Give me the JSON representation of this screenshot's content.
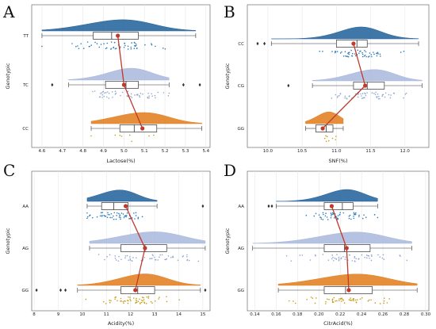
{
  "colors": {
    "series": [
      "#1f5f9a",
      "#a8b7dc",
      "#e07b1a"
    ],
    "points": [
      "#2b7bba",
      "#8fa7cf",
      "#c99a12"
    ],
    "median_line": "#c0392b",
    "grid": "#e6e6e6",
    "frame": "#555555"
  },
  "chart_data": [
    {
      "panel_label": "A",
      "type": "raincloud",
      "xlabel": "Lactose(%)",
      "ylabel": "Genotypic",
      "xlim": [
        4.55,
        5.42
      ],
      "xticks": [
        "4.6",
        "4.7",
        "4.8",
        "4.9",
        "5.0",
        "5.1",
        "5.2",
        "5.3",
        "5.4"
      ],
      "grid": true,
      "categories": [
        {
          "name": "TT",
          "q1": 4.85,
          "median": 4.94,
          "q3": 5.07,
          "whisker_low": 4.6,
          "whisker_high": 5.35,
          "outliers": [],
          "point_marker": 4.97
        },
        {
          "name": "TC",
          "q1": 4.91,
          "median": 5.01,
          "q3": 5.07,
          "whisker_low": 4.73,
          "whisker_high": 5.22,
          "outliers": [
            4.65,
            5.29,
            5.37
          ],
          "point_marker": 5.0
        },
        {
          "name": "CC",
          "q1": 4.98,
          "median": 5.05,
          "q3": 5.16,
          "whisker_low": 4.84,
          "whisker_high": 5.38,
          "outliers": [],
          "point_marker": 5.09
        }
      ]
    },
    {
      "panel_label": "B",
      "type": "raincloud",
      "xlabel": "SNF(%)",
      "ylabel": "Genotypic",
      "xlim": [
        9.7,
        12.35
      ],
      "xticks": [
        "10.0",
        "10.5",
        "11.0",
        "11.5",
        "12.0"
      ],
      "grid": true,
      "categories": [
        {
          "name": "CC",
          "q1": 11.0,
          "median": 11.3,
          "q3": 11.45,
          "whisker_low": 10.05,
          "whisker_high": 12.2,
          "outliers": [
            9.85,
            9.95
          ],
          "point_marker": 11.25
        },
        {
          "name": "CG",
          "q1": 11.25,
          "median": 11.45,
          "q3": 11.7,
          "whisker_low": 10.65,
          "whisker_high": 12.25,
          "outliers": [
            10.3
          ],
          "point_marker": 11.42
        },
        {
          "name": "GG",
          "q1": 10.7,
          "median": 10.85,
          "q3": 10.95,
          "whisker_low": 10.55,
          "whisker_high": 11.1,
          "outliers": [],
          "point_marker": 10.8
        }
      ]
    },
    {
      "panel_label": "C",
      "type": "raincloud",
      "xlabel": "Acidity(%)",
      "ylabel": "Genotypic",
      "xlim": [
        7.9,
        15.3
      ],
      "xticks": [
        "8",
        "9",
        "10",
        "11",
        "12",
        "13",
        "14",
        "15"
      ],
      "grid": true,
      "categories": [
        {
          "name": "AA",
          "q1": 10.8,
          "median": 11.3,
          "q3": 11.9,
          "whisker_low": 10.2,
          "whisker_high": 13.1,
          "outliers": [
            15.0
          ],
          "point_marker": 11.8
        },
        {
          "name": "AG",
          "q1": 11.6,
          "median": 12.6,
          "q3": 13.5,
          "whisker_low": 10.3,
          "whisker_high": 15.1,
          "outliers": [],
          "point_marker": 12.6
        },
        {
          "name": "GG",
          "q1": 11.6,
          "median": 12.3,
          "q3": 13.0,
          "whisker_low": 9.8,
          "whisker_high": 14.9,
          "outliers": [
            8.1,
            9.1,
            9.3,
            15.1
          ],
          "point_marker": 12.2
        }
      ]
    },
    {
      "panel_label": "D",
      "type": "raincloud",
      "xlabel": "CitrAcid(%)",
      "ylabel": "Genotypic",
      "xlim": [
        0.133,
        0.303
      ],
      "xticks": [
        "0.14",
        "0.16",
        "0.18",
        "0.20",
        "0.22",
        "0.24",
        "0.26",
        "0.28",
        "0.30"
      ],
      "grid": true,
      "categories": [
        {
          "name": "AA",
          "q1": 0.205,
          "median": 0.222,
          "q3": 0.232,
          "whisker_low": 0.16,
          "whisker_high": 0.255,
          "outliers": [
            0.153,
            0.156
          ],
          "point_marker": 0.212
        },
        {
          "name": "AG",
          "q1": 0.205,
          "median": 0.224,
          "q3": 0.248,
          "whisker_low": 0.138,
          "whisker_high": 0.287,
          "outliers": [],
          "point_marker": 0.226
        },
        {
          "name": "GG",
          "q1": 0.205,
          "median": 0.225,
          "q3": 0.25,
          "whisker_low": 0.162,
          "whisker_high": 0.292,
          "outliers": [],
          "point_marker": 0.228
        }
      ]
    }
  ]
}
